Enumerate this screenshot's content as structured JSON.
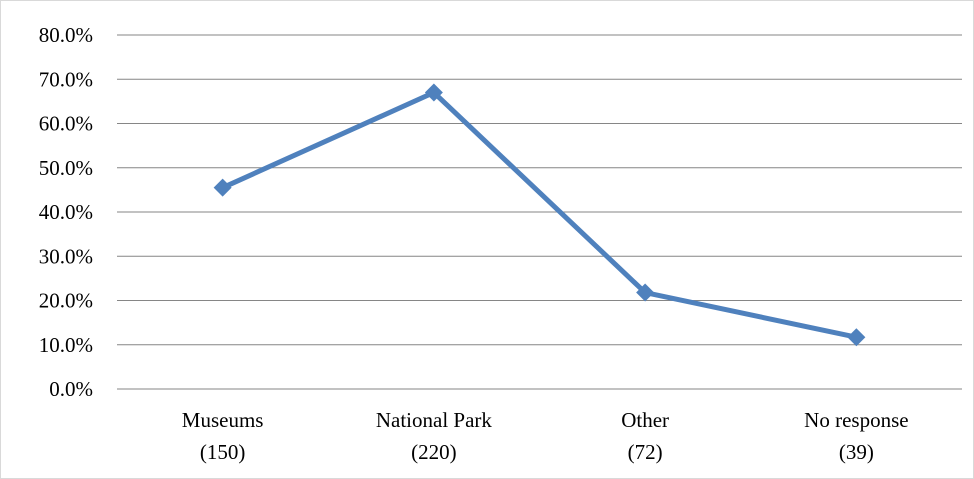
{
  "chart_data": {
    "type": "line",
    "categories": [
      [
        "Museums",
        "(150)"
      ],
      [
        "National Park",
        "(220)"
      ],
      [
        "Other",
        "(72)"
      ],
      [
        "No response",
        "(39)"
      ]
    ],
    "series": [
      {
        "values": [
          45.5,
          67.0,
          21.8,
          11.7
        ]
      }
    ],
    "ylim": [
      0,
      80
    ],
    "yticks": [
      "0.0%",
      "10.0%",
      "20.0%",
      "30.0%",
      "40.0%",
      "50.0%",
      "60.0%",
      "70.0%",
      "80.0%"
    ],
    "grid": true,
    "legend": "none",
    "colors": {
      "line": "#4f81bd",
      "grid": "#868686"
    }
  }
}
